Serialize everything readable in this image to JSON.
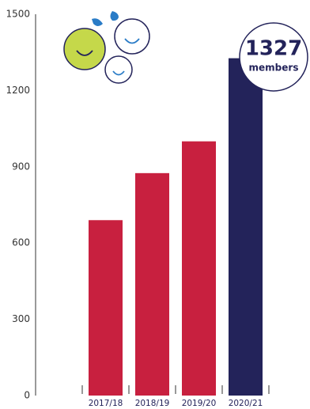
{
  "chart_data": {
    "type": "bar",
    "categories": [
      "2017/18",
      "2018/19",
      "2019/20",
      "2020/21"
    ],
    "values": [
      690,
      875,
      1000,
      1327
    ],
    "colors": [
      "#c8203f",
      "#c8203f",
      "#c8203f",
      "#23235a"
    ],
    "ylim": [
      0,
      1500
    ],
    "yticks": [
      0,
      300,
      600,
      900,
      1200,
      1500
    ],
    "grid": false,
    "annotation": "members"
  }
}
